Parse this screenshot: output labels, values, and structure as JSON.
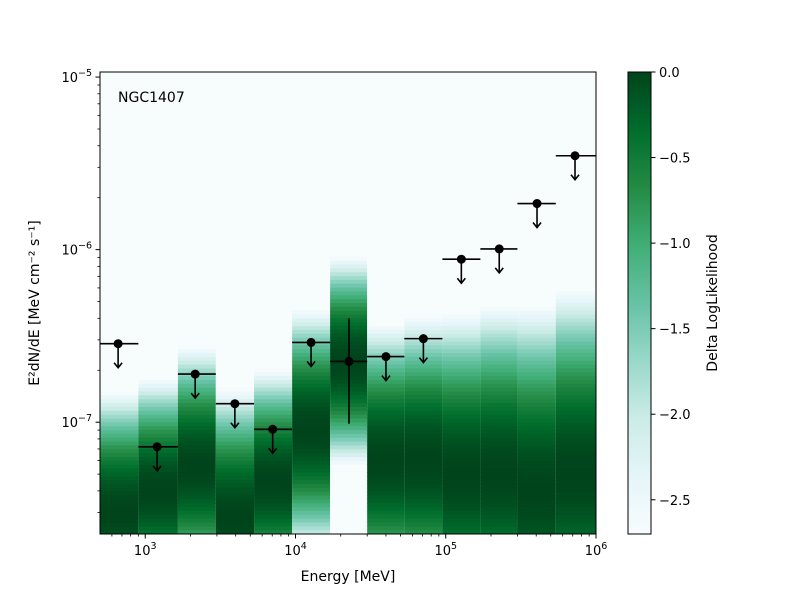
{
  "chart_data": {
    "type": "heatmap",
    "annotation": "NGC1407",
    "xlabel": "Energy [MeV]",
    "ylabel": "E²dN/dE [MeV cm⁻² s⁻¹]",
    "x_scale": "log",
    "y_scale": "log",
    "xlim": [
      500,
      1000000
    ],
    "ylim": [
      2.25e-08,
      1.07e-05
    ],
    "x_ticks": [
      {
        "value": 1000,
        "base": "10",
        "exp": "3"
      },
      {
        "value": 10000,
        "base": "10",
        "exp": "4"
      },
      {
        "value": 100000,
        "base": "10",
        "exp": "5"
      },
      {
        "value": 1000000,
        "base": "10",
        "exp": "6"
      }
    ],
    "y_ticks": [
      {
        "value": 1e-07,
        "base": "10",
        "exp": "−7"
      },
      {
        "value": 1e-06,
        "base": "10",
        "exp": "−6"
      },
      {
        "value": 1e-05,
        "base": "10",
        "exp": "−5"
      }
    ],
    "colorbar": {
      "label": "Delta LogLikelihood",
      "range": [
        -2.7,
        0.0
      ],
      "ticks": [
        {
          "value": 0.0,
          "label": "0.0"
        },
        {
          "value": -0.5,
          "label": "−0.5"
        },
        {
          "value": -1.0,
          "label": "−1.0"
        },
        {
          "value": -1.5,
          "label": "−1.5"
        },
        {
          "value": -2.0,
          "label": "−2.0"
        },
        {
          "value": -2.5,
          "label": "−2.5"
        }
      ],
      "colors": [
        "#f7fcfd",
        "#e5f5f9",
        "#ccece6",
        "#99d8c9",
        "#66c2a4",
        "#41ae76",
        "#238b45",
        "#006d2c",
        "#00441b"
      ]
    },
    "bins": [
      {
        "emin": 500,
        "emax": 900,
        "ectr": 660,
        "value": 2.85e-07,
        "limit": true,
        "peak": 3e-08,
        "width": 0.3
      },
      {
        "emin": 900,
        "emax": 1650,
        "ectr": 1200,
        "value": 7.2e-08,
        "limit": true,
        "peak": 4e-08,
        "width": 0.28
      },
      {
        "emin": 1650,
        "emax": 2950,
        "ectr": 2150,
        "value": 1.9e-07,
        "limit": true,
        "peak": 5.5e-08,
        "width": 0.3
      },
      {
        "emin": 2950,
        "emax": 5300,
        "ectr": 3950,
        "value": 1.28e-07,
        "limit": true,
        "peak": 2.8e-08,
        "width": 0.32
      },
      {
        "emin": 5300,
        "emax": 9500,
        "ectr": 7050,
        "value": 9.1e-08,
        "limit": true,
        "peak": 4.5e-08,
        "width": 0.28
      },
      {
        "emin": 9500,
        "emax": 17000,
        "ectr": 12700,
        "value": 2.9e-07,
        "limit": true,
        "peak": 9e-08,
        "width": 0.3
      },
      {
        "emin": 17000,
        "emax": 30000,
        "ectr": 22700,
        "value": 2.25e-07,
        "limit": false,
        "err_lo": 9.8e-08,
        "err_hi": 4e-07,
        "peak": 2.25e-07,
        "width": 0.26
      },
      {
        "emin": 30000,
        "emax": 53000,
        "ectr": 40000,
        "value": 2.4e-07,
        "limit": true,
        "peak": 6e-08,
        "width": 0.34
      },
      {
        "emin": 53000,
        "emax": 95000,
        "ectr": 71000,
        "value": 3.05e-07,
        "limit": true,
        "peak": 6e-08,
        "width": 0.36
      },
      {
        "emin": 95000,
        "emax": 170000,
        "ectr": 127000,
        "value": 8.8e-07,
        "limit": true,
        "peak": 5e-08,
        "width": 0.4
      },
      {
        "emin": 170000,
        "emax": 300000,
        "ectr": 227000,
        "value": 1.01e-06,
        "limit": true,
        "peak": 5e-08,
        "width": 0.42
      },
      {
        "emin": 300000,
        "emax": 540000,
        "ectr": 405000,
        "value": 1.85e-06,
        "limit": true,
        "peak": 4e-08,
        "width": 0.46
      },
      {
        "emin": 540000,
        "emax": 1000000,
        "ectr": 725000,
        "value": 3.5e-06,
        "limit": true,
        "peak": 5e-08,
        "width": 0.46
      }
    ]
  }
}
